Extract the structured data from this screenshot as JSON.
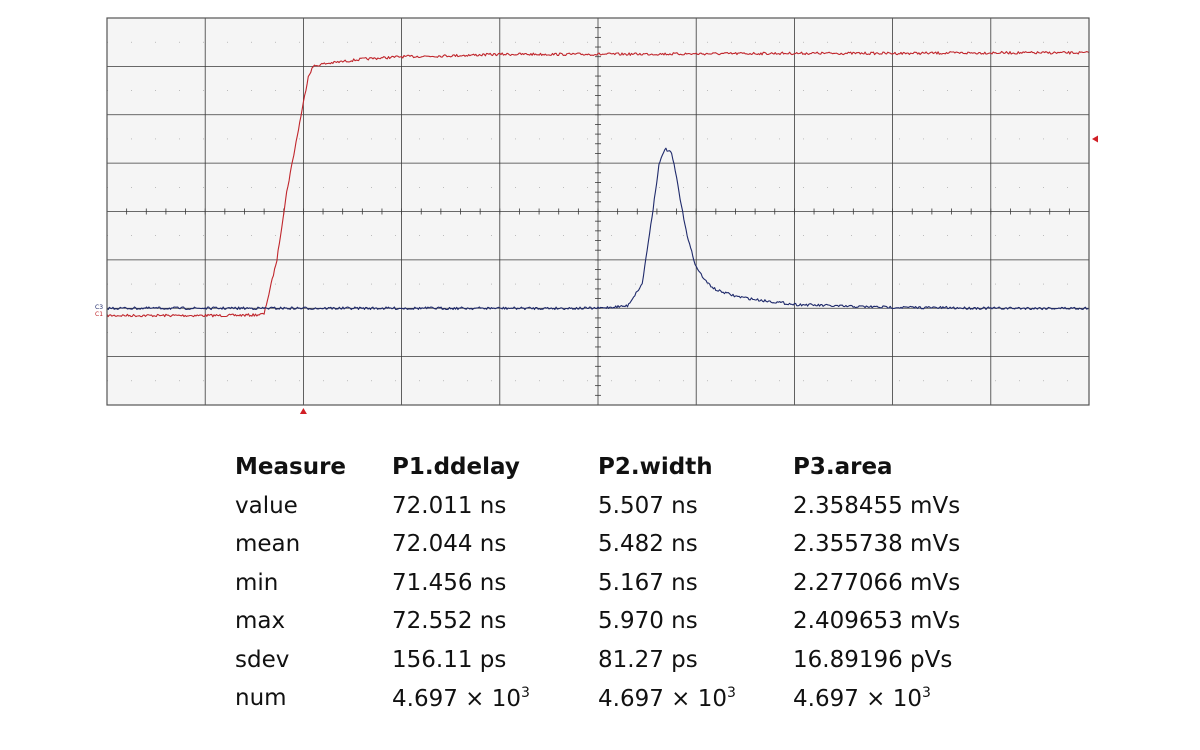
{
  "colors": {
    "background": "#ffffff",
    "plot_background": "#f5f5f5",
    "grid": "#3a3a3a",
    "frame": "#555555",
    "trace_red": "#c0262c",
    "trace_blue": "#1f2a6b",
    "trigger_marker": "#d11f26"
  },
  "scope": {
    "ch_label_top": "C3",
    "ch_label_bottom": "C1"
  },
  "chart_data": {
    "type": "line",
    "grid": true,
    "divisions": {
      "x": 10,
      "y": 8
    },
    "xlim": [
      0,
      10
    ],
    "ylim": [
      -4,
      4
    ],
    "series": [
      {
        "x": [
          0,
          1.2,
          1.5,
          1.6,
          1.73,
          1.83,
          1.95,
          2.05,
          2.1,
          2.2,
          2.4,
          2.6,
          3.0,
          3.5,
          4.0,
          5.0,
          6.0,
          7.0,
          8.0,
          9.0,
          10.0
        ],
        "y": [
          -2.15,
          -2.15,
          -2.14,
          -2.12,
          -1.0,
          0.4,
          1.7,
          2.8,
          3.0,
          3.05,
          3.1,
          3.15,
          3.2,
          3.22,
          3.25,
          3.25,
          3.26,
          3.27,
          3.27,
          3.28,
          3.28
        ],
        "color_key": "trace_red"
      },
      {
        "x": [
          0,
          2,
          4,
          5.0,
          5.3,
          5.45,
          5.55,
          5.62,
          5.68,
          5.75,
          5.8,
          5.85,
          5.92,
          6.0,
          6.1,
          6.2,
          6.4,
          6.6,
          6.8,
          7.0,
          7.5,
          8.0,
          9.0,
          10.0
        ],
        "y": [
          -2.0,
          -2.0,
          -2.0,
          -2.0,
          -1.95,
          -1.5,
          -0.1,
          0.95,
          1.3,
          1.2,
          0.7,
          0.1,
          -0.6,
          -1.15,
          -1.45,
          -1.62,
          -1.75,
          -1.82,
          -1.87,
          -1.92,
          -1.96,
          -1.98,
          -2.0,
          -2.0
        ],
        "color_key": "trace_blue"
      }
    ],
    "markers": {
      "bottom_trigger_x": 2.0,
      "right_level_y": 1.5
    }
  },
  "table": {
    "headers": [
      "Measure",
      "P1.ddelay",
      "P2.width",
      "P3.area"
    ],
    "rows": [
      {
        "label": "value",
        "p1": "72.011 ns",
        "p2": "5.507 ns",
        "p3": "2.358455 mVs"
      },
      {
        "label": "mean",
        "p1": "72.044 ns",
        "p2": "5.482 ns",
        "p3": "2.355738 mVs"
      },
      {
        "label": "min",
        "p1": "71.456 ns",
        "p2": "5.167 ns",
        "p3": "2.277066 mVs"
      },
      {
        "label": "max",
        "p1": "72.552 ns",
        "p2": "5.970 ns",
        "p3": "2.409653 mVs"
      },
      {
        "label": "sdev",
        "p1": "156.11 ps",
        "p2": "81.27 ps",
        "p3": "16.89196 pVs"
      }
    ],
    "num_row": {
      "label": "num",
      "mantissa": "4.697 × 10",
      "exponent": "3"
    }
  }
}
